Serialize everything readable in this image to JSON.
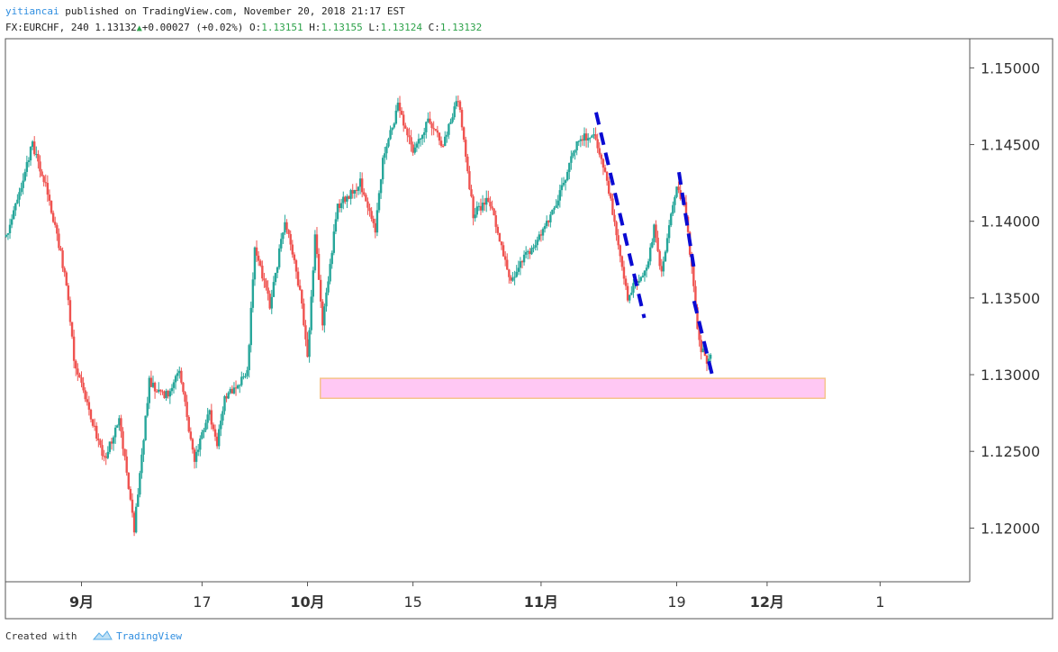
{
  "header": {
    "author": "yitiancai",
    "published": "published on TradingView.com, November 20, 2018 21:17 EST",
    "symbol": "FX:EURCHF, 240",
    "last": "1.13132",
    "change": "+0.00027 (+0.02%)",
    "o_label": "O:",
    "open": "1.13151",
    "h_label": "H:",
    "high": "1.13155",
    "l_label": "L:",
    "low": "1.13124",
    "c_label": "C:",
    "close": "1.13132"
  },
  "footer": {
    "created_with": "Created with",
    "brand": "TradingView",
    "logo_icon": "tradingview-cloud-icon"
  },
  "colors": {
    "up": "#26a69a",
    "down": "#ef5350",
    "zone_fill": "#ffc8f4",
    "zone_border": "#f5c38a",
    "projection": "#0a0ad2"
  },
  "chart_data": {
    "type": "candlestick",
    "interval": "240",
    "x_ticks": [
      {
        "label": "9月",
        "bold": true,
        "x": 1
      },
      {
        "label": "17",
        "bold": false,
        "x": 17
      },
      {
        "label": "10月",
        "bold": true,
        "x": 31
      },
      {
        "label": "15",
        "bold": false,
        "x": 45
      },
      {
        "label": "11月",
        "bold": true,
        "x": 62
      },
      {
        "label": "19",
        "bold": false,
        "x": 80
      },
      {
        "label": "12月",
        "bold": true,
        "x": 92
      },
      {
        "label": "1",
        "bold": false,
        "x": 107
      }
    ],
    "x_domain": [
      -9.1,
      118.9
    ],
    "y_ticks": [
      "1.15000",
      "1.14500",
      "1.14000",
      "1.13500",
      "1.13000",
      "1.12500",
      "1.12000"
    ],
    "ylim": [
      1.1165,
      1.1519
    ],
    "trend_days": [
      -9,
      -5.5,
      -3.5,
      -1,
      0,
      4,
      6,
      8,
      10,
      12,
      14,
      16,
      18,
      19,
      20,
      23,
      24,
      26,
      28,
      30,
      31,
      32,
      33,
      35,
      38,
      40,
      41,
      43,
      45,
      47,
      49,
      51,
      53,
      55,
      57,
      58,
      59,
      61,
      63,
      65,
      67,
      69,
      70,
      71,
      72,
      73.5,
      74.5,
      76,
      77,
      78,
      79,
      80,
      81,
      82,
      83,
      84,
      84.5
    ],
    "trend_prices": [
      1.139,
      1.145,
      1.142,
      1.136,
      1.131,
      1.1245,
      1.127,
      1.12,
      1.1295,
      1.1285,
      1.13,
      1.1245,
      1.1275,
      1.1255,
      1.1285,
      1.13,
      1.1385,
      1.1345,
      1.14,
      1.1355,
      1.131,
      1.139,
      1.1335,
      1.141,
      1.1425,
      1.1395,
      1.144,
      1.1475,
      1.1445,
      1.1465,
      1.145,
      1.148,
      1.1405,
      1.1415,
      1.138,
      1.136,
      1.137,
      1.1385,
      1.14,
      1.1425,
      1.1455,
      1.1455,
      1.144,
      1.142,
      1.139,
      1.135,
      1.136,
      1.137,
      1.1395,
      1.1365,
      1.14,
      1.1425,
      1.141,
      1.137,
      1.132,
      1.131,
      1.1313
    ],
    "zone": {
      "x_start": 32.7,
      "x_end": 99.7,
      "y_low": 1.12846,
      "y_high": 1.12976
    },
    "projection_lines": [
      {
        "x": [
          69.3,
          75.7
        ],
        "y": [
          1.1471,
          1.1337
        ]
      },
      {
        "x": [
          80.3,
          82.3
        ],
        "y": [
          1.1432,
          1.1369
        ]
      },
      {
        "x": [
          82.3,
          84.8
        ],
        "y": [
          1.1348,
          1.1298
        ]
      }
    ]
  }
}
